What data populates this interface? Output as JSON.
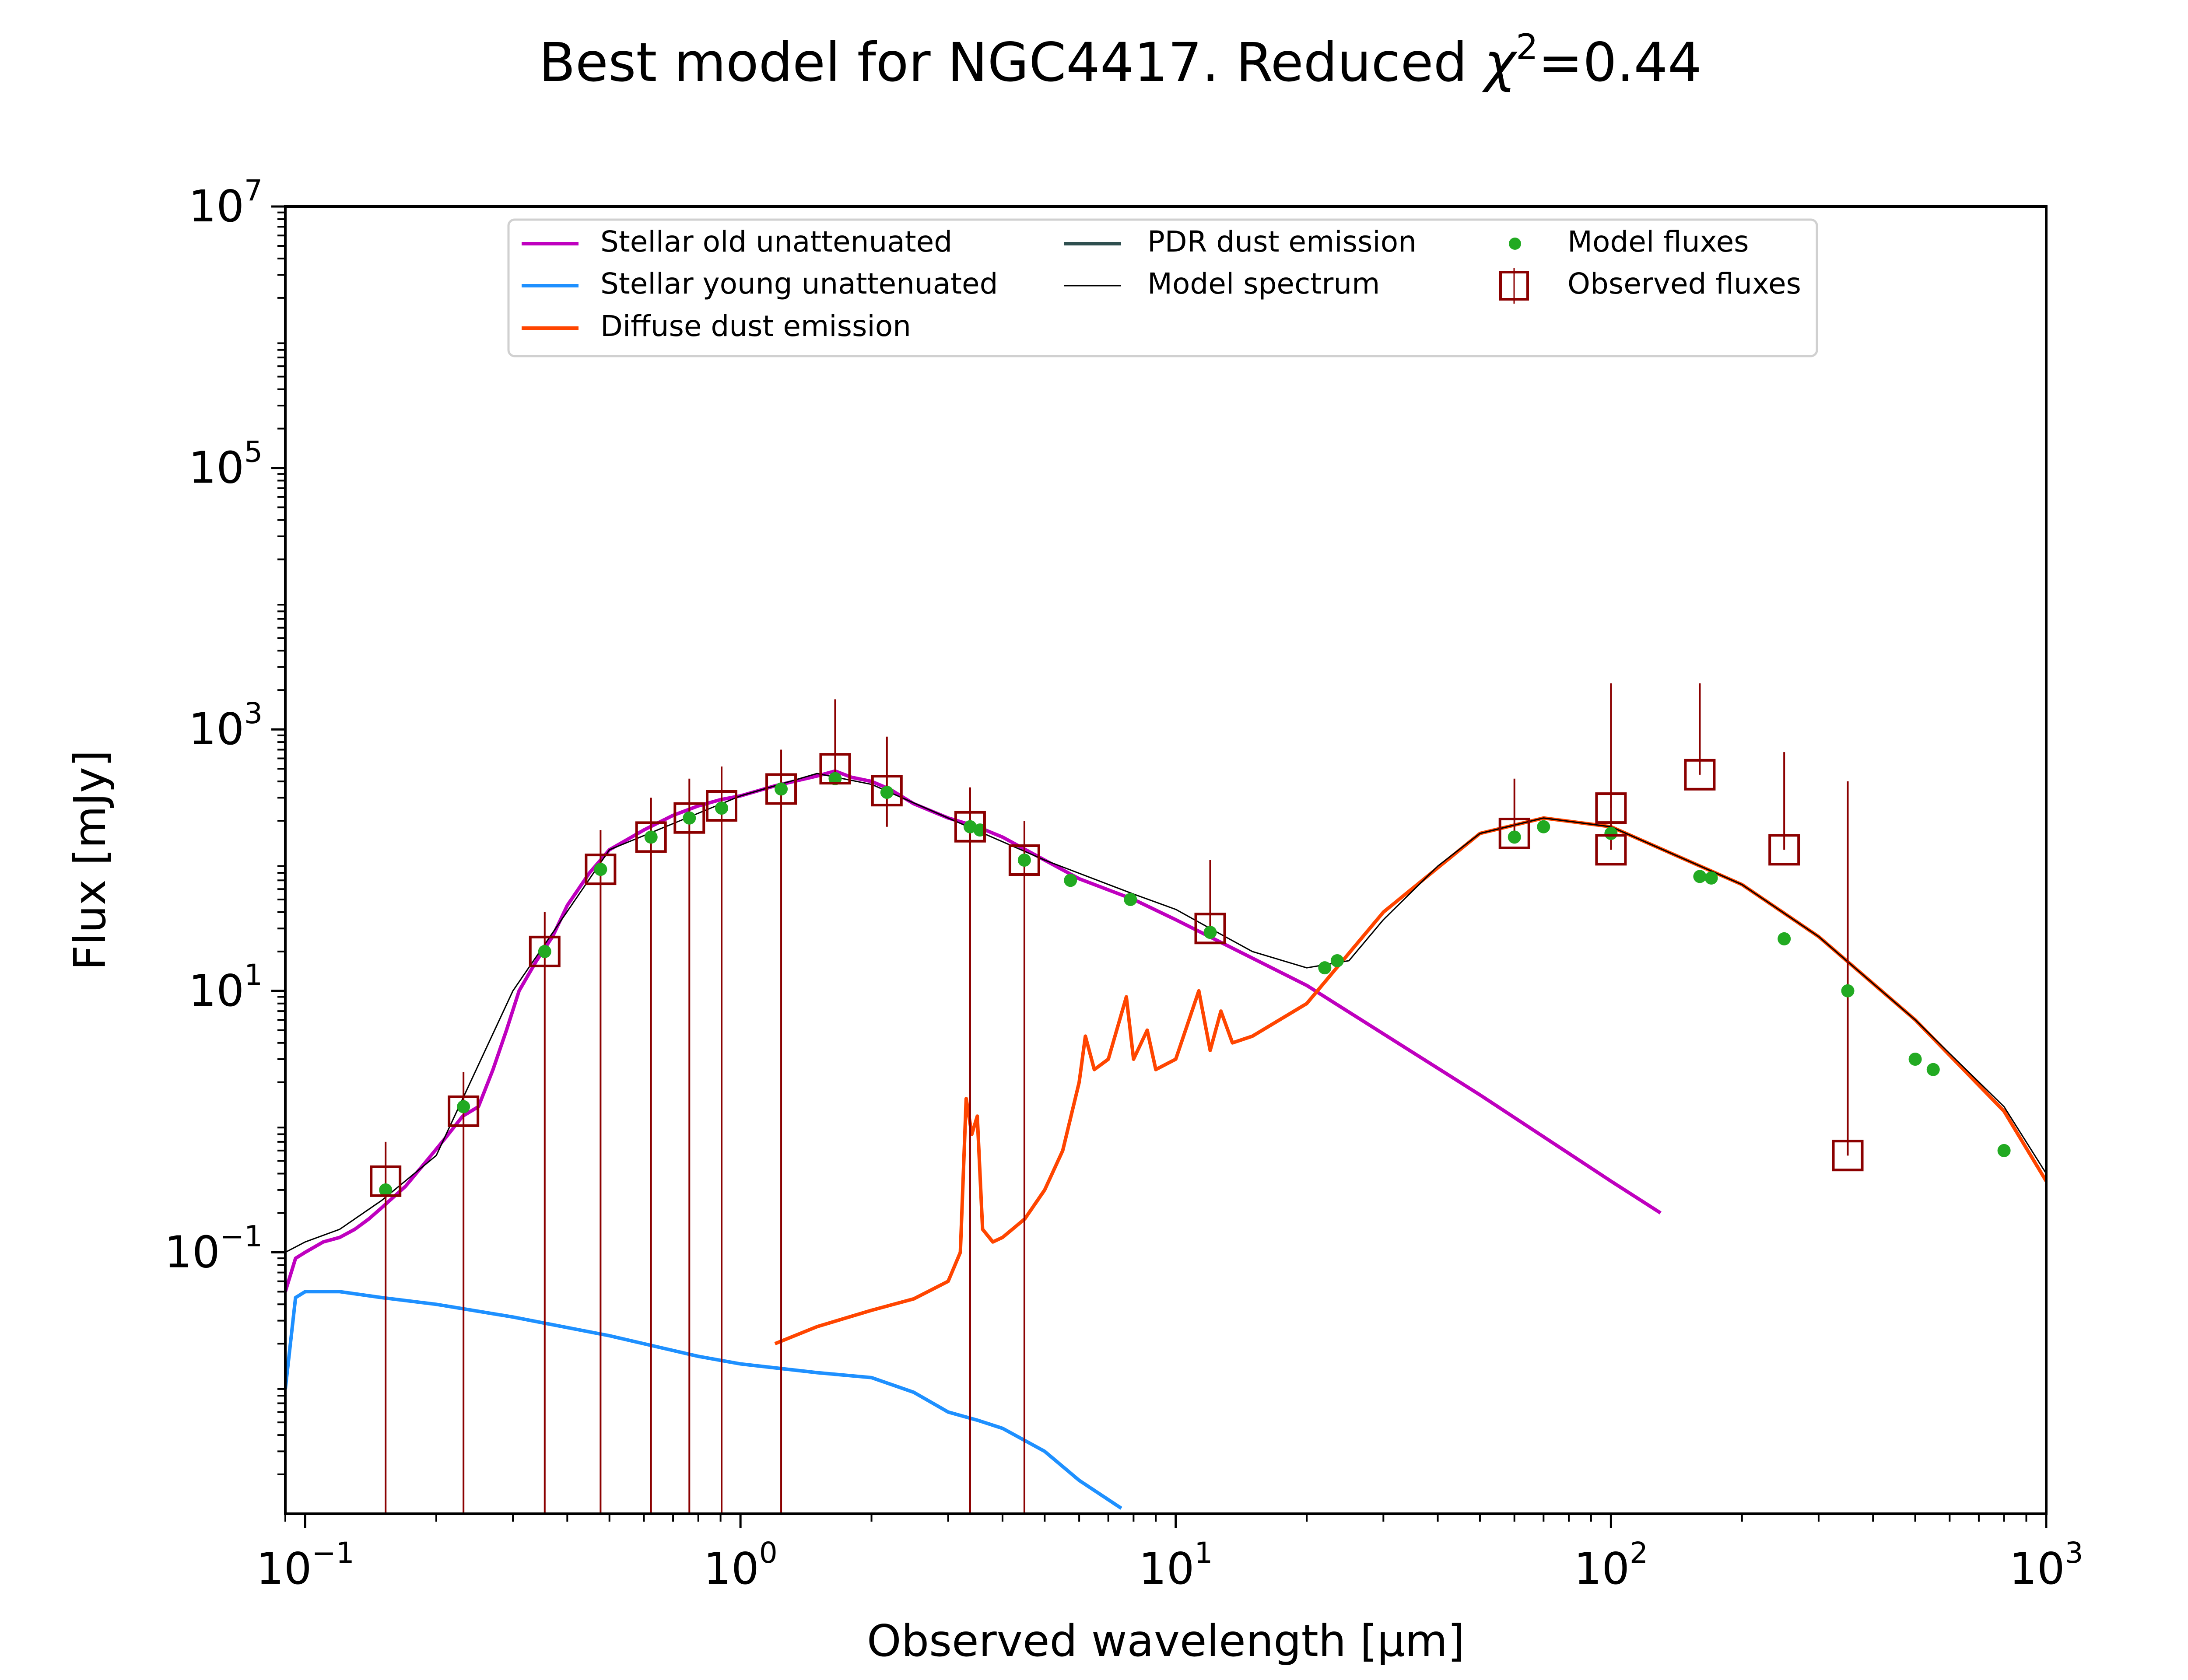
{
  "chart_data": {
    "type": "line",
    "title": "Best model for NGC4417. Reduced χ²=0.44",
    "title_main": "Best model for NGC4417. Reduced ",
    "title_chi": "χ",
    "title_sup": "2",
    "title_tail": "=0.44",
    "xlabel": "Observed wavelength [μm]",
    "ylabel": "Flux [mJy]",
    "x_scale": "log",
    "y_scale": "log",
    "xlim": [
      0.09,
      1000
    ],
    "ylim": [
      0.001,
      10000000
    ],
    "grid": false,
    "legend_position": "top-center",
    "x_ticks": [
      {
        "value": 0.1,
        "base": "10",
        "exp": "−1"
      },
      {
        "value": 1,
        "base": "10",
        "exp": "0"
      },
      {
        "value": 10,
        "base": "10",
        "exp": "1"
      },
      {
        "value": 100,
        "base": "10",
        "exp": "2"
      },
      {
        "value": 1000,
        "base": "10",
        "exp": "3"
      }
    ],
    "y_ticks": [
      {
        "value": 0.1,
        "base": "10",
        "exp": "−1"
      },
      {
        "value": 10,
        "base": "10",
        "exp": "1"
      },
      {
        "value": 1000,
        "base": "10",
        "exp": "3"
      },
      {
        "value": 100000,
        "base": "10",
        "exp": "5"
      },
      {
        "value": 10000000,
        "base": "10",
        "exp": "7"
      }
    ],
    "series": [
      {
        "name": "Stellar old unattenuated",
        "color": "#bf00bf",
        "x": [
          0.09,
          0.095,
          0.1,
          0.11,
          0.12,
          0.13,
          0.14,
          0.15,
          0.17,
          0.19,
          0.21,
          0.23,
          0.25,
          0.27,
          0.29,
          0.31,
          0.34,
          0.37,
          0.4,
          0.45,
          0.5,
          0.6,
          0.7,
          0.8,
          0.9,
          1.0,
          1.2,
          1.5,
          1.65,
          1.8,
          2.0,
          2.2,
          2.5,
          3.0,
          3.5,
          4.0,
          5.0,
          6.0,
          8.0,
          10,
          20,
          50,
          100,
          130
        ],
        "y": [
          0.05,
          0.09,
          0.1,
          0.12,
          0.13,
          0.15,
          0.18,
          0.22,
          0.32,
          0.5,
          0.75,
          1.1,
          1.3,
          2.5,
          5,
          10,
          17,
          26,
          45,
          80,
          120,
          170,
          220,
          260,
          290,
          310,
          370,
          440,
          480,
          430,
          400,
          350,
          270,
          210,
          180,
          150,
          100,
          72,
          50,
          35,
          11,
          1.6,
          0.35,
          0.2
        ]
      },
      {
        "name": "Stellar young unattenuated",
        "color": "#1e90ff",
        "x": [
          0.09,
          0.095,
          0.1,
          0.12,
          0.15,
          0.2,
          0.3,
          0.5,
          0.8,
          1.0,
          1.5,
          2.0,
          2.5,
          3.0,
          3.5,
          4.0,
          5.0,
          6.0,
          7.5
        ],
        "y": [
          0.009,
          0.045,
          0.05,
          0.05,
          0.045,
          0.04,
          0.032,
          0.023,
          0.016,
          0.014,
          0.012,
          0.011,
          0.0085,
          0.006,
          0.0052,
          0.0045,
          0.003,
          0.0018,
          0.0011
        ]
      },
      {
        "name": "Diffuse dust emission",
        "color": "#ff4500",
        "x": [
          1.2,
          1.5,
          2.0,
          2.5,
          3.0,
          3.2,
          3.3,
          3.4,
          3.5,
          3.6,
          3.8,
          4.0,
          4.5,
          5.0,
          5.5,
          6.0,
          6.2,
          6.5,
          7.0,
          7.7,
          8.0,
          8.6,
          9.0,
          10,
          11.3,
          12,
          12.7,
          13.5,
          15,
          20,
          30,
          50,
          70,
          100,
          200,
          300,
          500,
          800,
          1000
        ],
        "y": [
          0.02,
          0.027,
          0.036,
          0.044,
          0.06,
          0.1,
          1.5,
          0.8,
          1.1,
          0.15,
          0.12,
          0.13,
          0.18,
          0.3,
          0.6,
          2,
          4.5,
          2.5,
          3,
          9,
          3,
          5,
          2.5,
          3,
          10,
          3.5,
          7,
          4,
          4.5,
          8,
          40,
          160,
          210,
          180,
          65,
          26,
          6,
          1.2,
          0.35
        ]
      },
      {
        "name": "PDR dust emission",
        "color": "#2f4f4f",
        "x": [],
        "y": []
      },
      {
        "name": "Model spectrum",
        "color": "#000000",
        "x": [
          0.09,
          0.1,
          0.12,
          0.15,
          0.2,
          0.3,
          0.5,
          1.0,
          1.5,
          2.0,
          3.0,
          5.0,
          8.0,
          10,
          12,
          15,
          20,
          25,
          30,
          40,
          50,
          70,
          100,
          200,
          300,
          500,
          800,
          1000
        ],
        "y": [
          0.1,
          0.12,
          0.15,
          0.25,
          0.55,
          10,
          120,
          310,
          460,
          380,
          210,
          100,
          55,
          42,
          30,
          20,
          15,
          17,
          35,
          90,
          160,
          210,
          180,
          65,
          26,
          6,
          1.3,
          0.4
        ]
      }
    ],
    "model_fluxes": {
      "name": "Model fluxes",
      "color": "#22aa22",
      "x": [
        0.153,
        0.231,
        0.355,
        0.477,
        0.623,
        0.763,
        0.905,
        1.24,
        1.65,
        2.17,
        3.37,
        3.55,
        4.49,
        5.73,
        7.87,
        12,
        22,
        23.5,
        60,
        70,
        100,
        160,
        170,
        250,
        350,
        500,
        550,
        800
      ],
      "y": [
        0.3,
        1.3,
        20,
        85,
        150,
        210,
        250,
        350,
        420,
        330,
        180,
        170,
        100,
        70,
        50,
        28,
        15,
        17,
        150,
        180,
        160,
        75,
        73,
        25,
        10,
        3,
        2.5,
        0.6
      ]
    },
    "observed_fluxes": {
      "name": "Observed fluxes",
      "color": "#8b0000",
      "x": [
        0.153,
        0.231,
        0.355,
        0.477,
        0.623,
        0.763,
        0.905,
        1.24,
        1.65,
        2.17,
        3.37,
        4.49,
        12,
        60,
        100,
        100,
        160,
        250,
        350
      ],
      "y": [
        0.35,
        1.2,
        20,
        85,
        150,
        210,
        260,
        350,
        500,
        340,
        180,
        100,
        30,
        160,
        250,
        120,
        450,
        120,
        0.55
      ],
      "err_lo": [
        0.35,
        1.2,
        20,
        85,
        150,
        210,
        260,
        350,
        40,
        160,
        180,
        100,
        0.001,
        22,
        0.001,
        0.001,
        0.001,
        0.001,
        0.001
      ],
      "err_hi": [
        0.35,
        1.2,
        20,
        85,
        150,
        210,
        260,
        350,
        1200,
        540,
        180,
        100,
        70,
        260,
        2000,
        2000,
        1800,
        550,
        400
      ]
    }
  }
}
